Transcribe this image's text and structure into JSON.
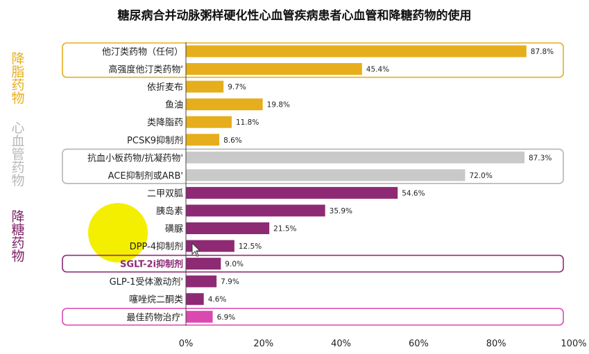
{
  "title": "糖尿病合并动脉粥样硬化性心血管疾病患者心血管和降糖药物的使用",
  "group_labels": {
    "lipid": "降脂药物",
    "cardio": "心血管药物",
    "glucose": "降糖药物"
  },
  "colors": {
    "lipid": "#e6ae1c",
    "cardio": "#c9c9c9",
    "glucose": "#8e2a74",
    "optimal": "#d949b0",
    "cardio_label": "#b8b8b8",
    "glucose_label": "#7a1f63"
  },
  "chart_data": {
    "type": "bar",
    "orientation": "horizontal",
    "title": "糖尿病合并动脉粥样硬化性心血管疾病患者心血管和降糖药物的使用",
    "xlim": [
      0,
      100
    ],
    "x_ticks": [
      "0%",
      "20%",
      "40%",
      "60%",
      "80%",
      "100%"
    ],
    "grid": false,
    "categories": [
      "他汀类药物（任何）",
      "高强度他汀类药物'",
      "依折麦布",
      "鱼油",
      "类降脂药",
      "PCSK9抑制剂",
      "抗血小板药物/抗凝药物'",
      "ACE抑制剂或ARB'",
      "二甲双胍",
      "胰岛素",
      "磺脲",
      "DPP-4抑制剂",
      "SGLT-2i抑制剂",
      "GLP-1受体激动剂'",
      "噻唑烷二酮类",
      "最佳药物治疗'"
    ],
    "values": [
      87.8,
      45.4,
      9.7,
      19.8,
      11.8,
      8.6,
      87.3,
      72.0,
      54.6,
      35.9,
      21.5,
      12.5,
      9.0,
      7.9,
      4.6,
      6.9
    ],
    "value_labels": [
      "87.8%",
      "45.4%",
      "9.7%",
      "19.8%",
      "11.8%",
      "8.6%",
      "87.3%",
      "72.0%",
      "54.6%",
      "35.9%",
      "21.5%",
      "12.5%",
      "9.0%",
      "7.9%",
      "4.6%",
      "6.9%"
    ],
    "groups": [
      "lipid",
      "lipid",
      "lipid",
      "lipid",
      "lipid",
      "lipid",
      "cardio",
      "cardio",
      "glucose",
      "glucose",
      "glucose",
      "glucose",
      "glucose",
      "glucose",
      "glucose",
      "optimal"
    ],
    "bold_categories": [
      "SGLT-2i抑制剂"
    ]
  }
}
